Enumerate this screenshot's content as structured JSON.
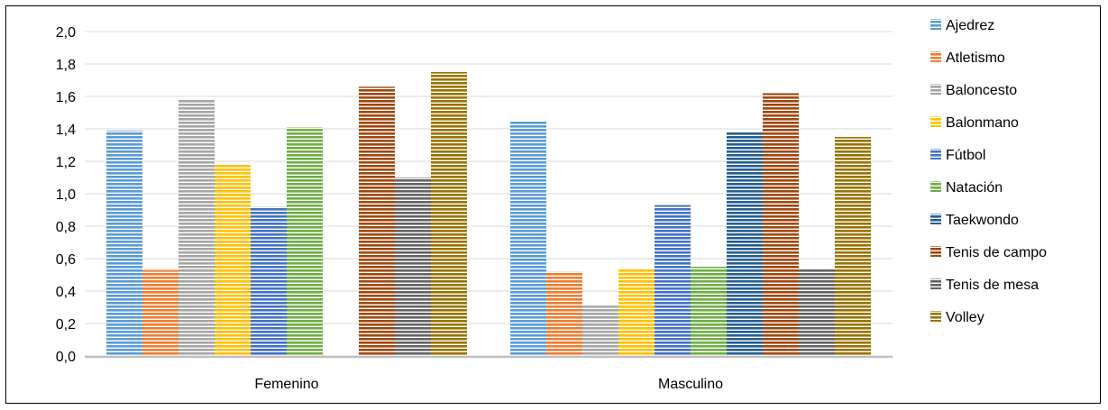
{
  "chart_data": {
    "type": "bar",
    "categories": [
      "Femenino",
      "Masculino"
    ],
    "series": [
      {
        "name": "Ajedrez",
        "values": [
          1.39,
          1.45
        ],
        "color": "#5B9BD5"
      },
      {
        "name": "Atletismo",
        "values": [
          0.53,
          0.52
        ],
        "color": "#ED7D31"
      },
      {
        "name": "Baloncesto",
        "values": [
          1.58,
          0.31
        ],
        "color": "#A5A5A5"
      },
      {
        "name": "Balonmano",
        "values": [
          1.18,
          0.54
        ],
        "color": "#FFC000"
      },
      {
        "name": "Fútbol",
        "values": [
          0.92,
          0.93
        ],
        "color": "#4472C4"
      },
      {
        "name": "Natación",
        "values": [
          1.41,
          0.55
        ],
        "color": "#70AD47"
      },
      {
        "name": "Taekwondo",
        "values": [
          null,
          1.38
        ],
        "color": "#255E91"
      },
      {
        "name": "Tenis de campo",
        "values": [
          1.66,
          1.62
        ],
        "color": "#9E480E"
      },
      {
        "name": "Tenis de mesa",
        "values": [
          1.1,
          0.54
        ],
        "color": "#636363"
      },
      {
        "name": "Volley",
        "values": [
          1.75,
          1.35
        ],
        "color": "#997300"
      }
    ],
    "y_ticks": [
      "0,0",
      "0,2",
      "0,4",
      "0,6",
      "0,8",
      "1,0",
      "1,2",
      "1,4",
      "1,6",
      "1,8",
      "2,0"
    ],
    "ylim": [
      0,
      2.0
    ],
    "ystep": 0.2,
    "grid": true,
    "legend_position": "right",
    "title": "",
    "xlabel": "",
    "ylabel": ""
  }
}
